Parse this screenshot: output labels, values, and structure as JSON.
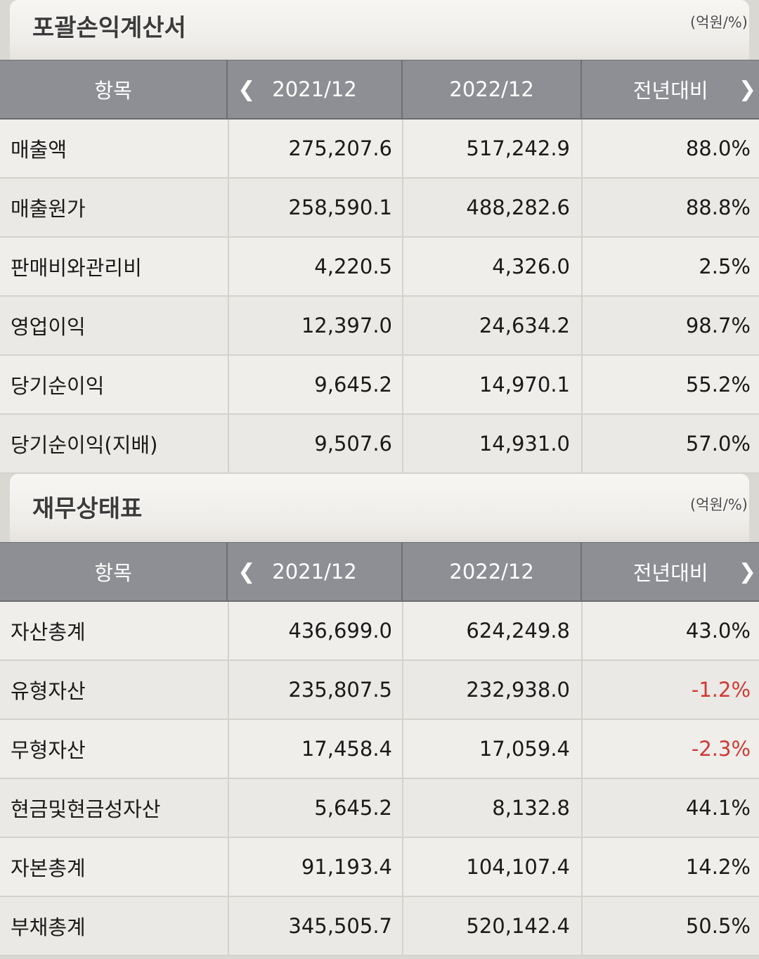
{
  "income": {
    "title": "포괄손익계산서",
    "unit": "(억원/%)",
    "headers": {
      "item": "항목",
      "prev": "2021/12",
      "curr": "2022/12",
      "change": "전년대비"
    },
    "rows": [
      {
        "name": "매출액",
        "prev": "275,207.6",
        "curr": "517,242.9",
        "change": "88.0%"
      },
      {
        "name": "매출원가",
        "prev": "258,590.1",
        "curr": "488,282.6",
        "change": "88.8%"
      },
      {
        "name": "판매비와관리비",
        "prev": "4,220.5",
        "curr": "4,326.0",
        "change": "2.5%"
      },
      {
        "name": "영업이익",
        "prev": "12,397.0",
        "curr": "24,634.2",
        "change": "98.7%"
      },
      {
        "name": "당기순이익",
        "prev": "9,645.2",
        "curr": "14,970.1",
        "change": "55.2%"
      },
      {
        "name": "당기순이익(지배)",
        "prev": "9,507.6",
        "curr": "14,931.0",
        "change": "57.0%"
      }
    ]
  },
  "balance": {
    "title": "재무상태표",
    "unit": "(억원/%)",
    "headers": {
      "item": "항목",
      "prev": "2021/12",
      "curr": "2022/12",
      "change": "전년대비"
    },
    "rows": [
      {
        "name": "자산총계",
        "prev": "436,699.0",
        "curr": "624,249.8",
        "change": "43.0%"
      },
      {
        "name": "유형자산",
        "prev": "235,807.5",
        "curr": "232,938.0",
        "change": "-1.2%"
      },
      {
        "name": "무형자산",
        "prev": "17,458.4",
        "curr": "17,059.4",
        "change": "-2.3%"
      },
      {
        "name": "현금및현금성자산",
        "prev": "5,645.2",
        "curr": "8,132.8",
        "change": "44.1%"
      },
      {
        "name": "자본총계",
        "prev": "91,193.4",
        "curr": "104,107.4",
        "change": "14.2%"
      },
      {
        "name": "부채총계",
        "prev": "345,505.7",
        "curr": "520,142.4",
        "change": "50.5%"
      }
    ]
  },
  "icons": {
    "prev": "chevron-left-icon",
    "next": "chevron-right-icon"
  },
  "colors": {
    "header_bg": "#8d8f94",
    "negative": "#cf3a33"
  }
}
